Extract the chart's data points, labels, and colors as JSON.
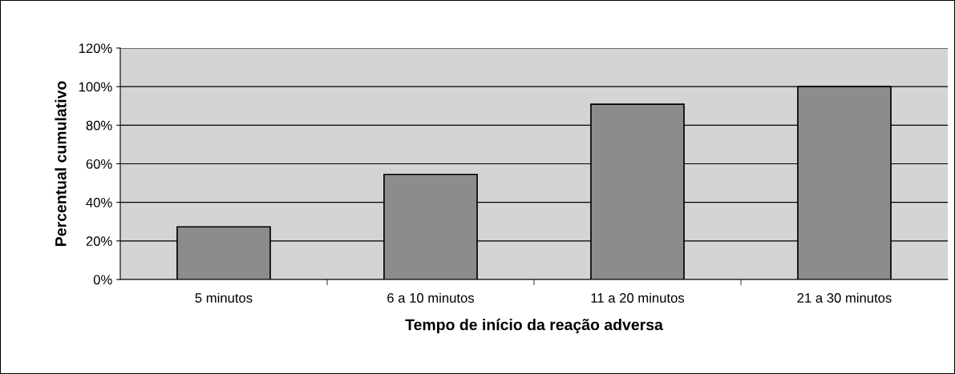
{
  "chart_data": {
    "type": "bar",
    "xlabel": "Tempo de início da reação adversa",
    "ylabel": "Percentual cumulativo",
    "categories": [
      "5 minutos",
      "6 a 10 minutos",
      "11 a 20 minutos",
      "21 a 30 minutos"
    ],
    "values": [
      27.3,
      54.5,
      90.9,
      100
    ],
    "color": "#8c8c8c",
    "ylim": [
      0,
      120
    ],
    "yticks": [
      {
        "value": 0,
        "label": "0%"
      },
      {
        "value": 20,
        "label": "20%"
      },
      {
        "value": 40,
        "label": "40%"
      },
      {
        "value": 60,
        "label": "60%"
      },
      {
        "value": 80,
        "label": "80%"
      },
      {
        "value": 100,
        "label": "100%"
      },
      {
        "value": 120,
        "label": "120%"
      }
    ],
    "grid": "y",
    "legend": false
  }
}
